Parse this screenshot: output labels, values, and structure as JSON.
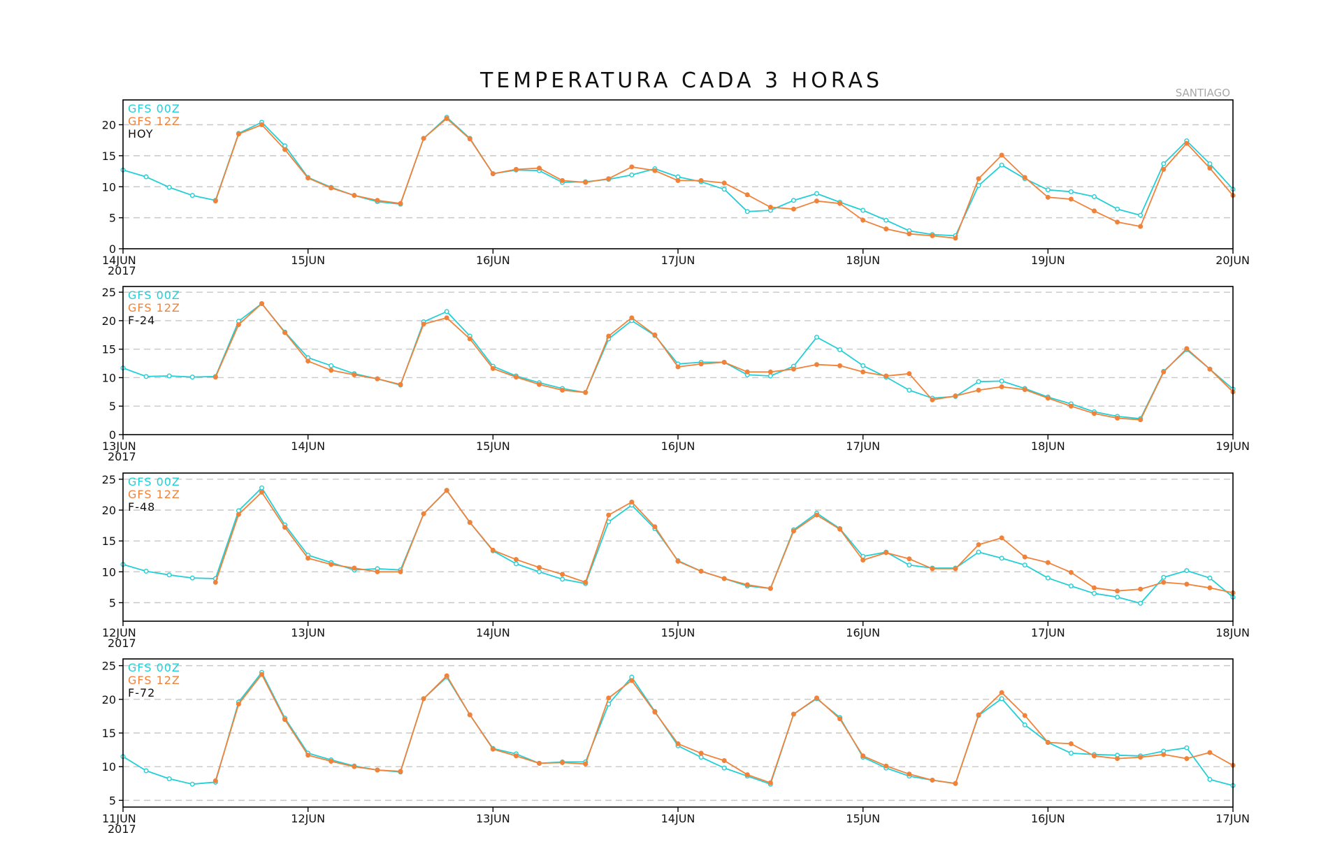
{
  "title": "TEMPERATURA CADA 3 HORAS",
  "location": "SANTIAGO",
  "colors": {
    "gfs00": "#22cfd6",
    "gfs12": "#f0823a",
    "grid": "#c8c8c8",
    "axis": "#000000"
  },
  "chart_data": [
    {
      "type": "line",
      "panel_label": "HOY",
      "year": "2017",
      "x_tick_labels": [
        "14JUN",
        "15JUN",
        "16JUN",
        "17JUN",
        "18JUN",
        "19JUN",
        "20JUN"
      ],
      "ylim": [
        0,
        24
      ],
      "y_ticks": [
        0,
        5,
        10,
        15,
        20
      ],
      "grid": true,
      "series": [
        {
          "name": "GFS 00Z",
          "start_index": 0,
          "values": [
            12.7,
            11.6,
            9.9,
            8.6,
            7.8,
            18.6,
            20.4,
            16.6,
            11.5,
            9.9,
            8.6,
            7.6,
            7.2,
            17.8,
            21.2,
            17.8,
            12.1,
            12.7,
            12.6,
            10.7,
            10.8,
            11.2,
            11.9,
            12.9,
            11.6,
            10.8,
            9.6,
            6.0,
            6.2,
            7.8,
            8.9,
            7.5,
            6.2,
            4.6,
            2.9,
            2.3,
            2.1,
            10.2,
            13.5,
            11.3,
            9.5,
            9.2,
            8.4,
            6.4,
            5.4,
            13.7,
            17.4,
            13.7,
            9.6
          ]
        },
        {
          "name": "GFS 12Z",
          "start_index": 4,
          "values": [
            7.7,
            18.5,
            20.0,
            16.0,
            11.4,
            9.8,
            8.6,
            7.8,
            7.3,
            17.8,
            21.0,
            17.7,
            12.1,
            12.8,
            13.0,
            11.0,
            10.7,
            11.3,
            13.2,
            12.6,
            11.0,
            11.0,
            10.6,
            8.7,
            6.7,
            6.4,
            7.7,
            7.3,
            4.6,
            3.2,
            2.4,
            2.1,
            1.7,
            11.3,
            15.1,
            11.5,
            8.3,
            8.0,
            6.1,
            4.3,
            3.6,
            12.8,
            17.0,
            13.0,
            8.6
          ]
        }
      ]
    },
    {
      "type": "line",
      "panel_label": "F-24",
      "year": "2017",
      "x_tick_labels": [
        "13JUN",
        "14JUN",
        "15JUN",
        "16JUN",
        "17JUN",
        "18JUN",
        "19JUN"
      ],
      "ylim": [
        0,
        26
      ],
      "y_ticks": [
        0,
        5,
        10,
        15,
        20,
        25
      ],
      "grid": true,
      "series": [
        {
          "name": "GFS 00Z",
          "start_index": 0,
          "values": [
            11.7,
            10.2,
            10.3,
            10.1,
            10.2,
            19.9,
            23.0,
            18.0,
            13.5,
            12.1,
            10.7,
            9.8,
            8.7,
            19.8,
            21.6,
            17.3,
            12.0,
            10.3,
            9.1,
            8.1,
            7.4,
            16.8,
            20.0,
            17.4,
            12.4,
            12.7,
            12.7,
            10.5,
            10.3,
            12.0,
            17.1,
            14.9,
            12.1,
            10.1,
            7.8,
            6.4,
            6.7,
            9.3,
            9.4,
            8.1,
            6.6,
            5.4,
            4.0,
            3.2,
            2.8,
            11.1,
            14.9,
            11.5,
            8.0
          ]
        },
        {
          "name": "GFS 12Z",
          "start_index": 4,
          "values": [
            10.1,
            19.3,
            23.0,
            17.9,
            12.9,
            11.3,
            10.5,
            9.8,
            8.8,
            19.4,
            20.5,
            16.8,
            11.6,
            10.1,
            8.8,
            7.8,
            7.4,
            17.3,
            20.5,
            17.5,
            11.9,
            12.4,
            12.7,
            11.0,
            11.0,
            11.5,
            12.3,
            12.1,
            11.0,
            10.3,
            10.7,
            6.1,
            6.8,
            7.8,
            8.4,
            7.9,
            6.4,
            5.0,
            3.7,
            2.9,
            2.6,
            11.0,
            15.1,
            11.5,
            7.5
          ]
        }
      ]
    },
    {
      "type": "line",
      "panel_label": "F-48",
      "year": "2017",
      "x_tick_labels": [
        "12JUN",
        "13JUN",
        "14JUN",
        "15JUN",
        "16JUN",
        "17JUN",
        "18JUN"
      ],
      "ylim": [
        2,
        26
      ],
      "y_ticks": [
        5,
        10,
        15,
        20,
        25
      ],
      "grid": true,
      "series": [
        {
          "name": "GFS 00Z",
          "start_index": 0,
          "values": [
            11.2,
            10.1,
            9.5,
            9.0,
            8.9,
            19.9,
            23.6,
            17.6,
            12.7,
            11.5,
            10.3,
            10.5,
            10.3,
            19.4,
            23.2,
            18.0,
            13.4,
            11.3,
            10.0,
            8.8,
            8.1,
            18.1,
            20.8,
            17.0,
            11.8,
            10.1,
            8.9,
            7.7,
            7.3,
            16.8,
            19.5,
            17.0,
            12.5,
            13.2,
            11.1,
            10.6,
            10.6,
            13.2,
            12.2,
            11.1,
            9.0,
            7.7,
            6.5,
            5.9,
            4.9,
            9.1,
            10.2,
            9.0,
            5.9
          ]
        },
        {
          "name": "GFS 12Z",
          "start_index": 4,
          "values": [
            8.3,
            19.3,
            22.9,
            17.2,
            12.2,
            11.2,
            10.6,
            10.0,
            10.0,
            19.4,
            23.2,
            18.0,
            13.5,
            12.0,
            10.7,
            9.6,
            8.3,
            19.2,
            21.3,
            17.3,
            11.7,
            10.1,
            8.9,
            7.9,
            7.3,
            16.6,
            19.2,
            16.9,
            11.9,
            13.1,
            12.1,
            10.5,
            10.5,
            14.4,
            15.5,
            12.4,
            11.5,
            9.9,
            7.4,
            6.9,
            7.2,
            8.3,
            8.0,
            7.4,
            6.6
          ]
        }
      ]
    },
    {
      "type": "line",
      "panel_label": "F-72",
      "year": "2017",
      "x_tick_labels": [
        "11JUN",
        "12JUN",
        "13JUN",
        "14JUN",
        "15JUN",
        "16JUN",
        "17JUN"
      ],
      "ylim": [
        4,
        26
      ],
      "y_ticks": [
        5,
        10,
        15,
        20,
        25
      ],
      "grid": true,
      "series": [
        {
          "name": "GFS 00Z",
          "start_index": 0,
          "values": [
            11.5,
            9.4,
            8.2,
            7.4,
            7.7,
            19.6,
            24.0,
            17.2,
            12.0,
            11.0,
            10.1,
            9.5,
            9.2,
            20.1,
            23.3,
            17.7,
            12.7,
            11.9,
            10.5,
            10.7,
            10.7,
            19.3,
            23.3,
            18.2,
            13.1,
            11.4,
            9.8,
            8.6,
            7.4,
            17.8,
            20.1,
            17.3,
            11.4,
            9.8,
            8.6,
            8.0,
            7.5,
            17.6,
            20.1,
            16.2,
            13.6,
            12.0,
            11.8,
            11.7,
            11.6,
            12.3,
            12.8,
            8.1,
            7.2
          ]
        },
        {
          "name": "GFS 12Z",
          "start_index": 4,
          "values": [
            7.9,
            19.3,
            23.7,
            17.0,
            11.7,
            10.8,
            10.0,
            9.5,
            9.3,
            20.1,
            23.5,
            17.7,
            12.6,
            11.6,
            10.5,
            10.6,
            10.4,
            20.2,
            22.8,
            18.1,
            13.4,
            12.0,
            10.9,
            8.8,
            7.6,
            17.8,
            20.2,
            17.1,
            11.6,
            10.1,
            8.9,
            8.0,
            7.5,
            17.7,
            21.0,
            17.6,
            13.6,
            13.4,
            11.6,
            11.2,
            11.4,
            11.8,
            11.2,
            12.1,
            10.2
          ]
        }
      ]
    }
  ]
}
